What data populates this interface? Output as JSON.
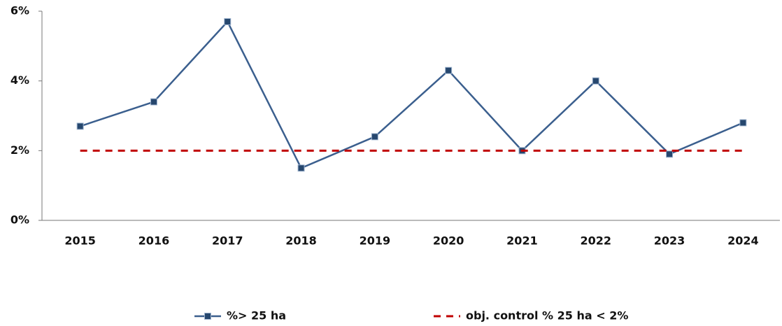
{
  "chart_data": {
    "type": "line",
    "categories": [
      "2015",
      "2016",
      "2017",
      "2018",
      "2019",
      "2020",
      "2021",
      "2022",
      "2023",
      "2024"
    ],
    "series": [
      {
        "name": "%> 25 ha",
        "color": "#3b5f8e",
        "marker": "square",
        "values": [
          2.7,
          3.4,
          5.7,
          1.5,
          2.4,
          4.3,
          2.0,
          4.0,
          1.9,
          2.8
        ]
      },
      {
        "name": "obj. control % 25 ha < 2%",
        "color": "#c00000",
        "dashed": true,
        "values": [
          2,
          2,
          2,
          2,
          2,
          2,
          2,
          2,
          2,
          2
        ]
      }
    ],
    "ylim": [
      0,
      6
    ],
    "yticks": [
      {
        "value": 0,
        "label": "0%"
      },
      {
        "value": 2,
        "label": "2%"
      },
      {
        "value": 4,
        "label": "4%"
      },
      {
        "value": 6,
        "label": "6%"
      }
    ],
    "grid": false,
    "legend": "bottom"
  }
}
